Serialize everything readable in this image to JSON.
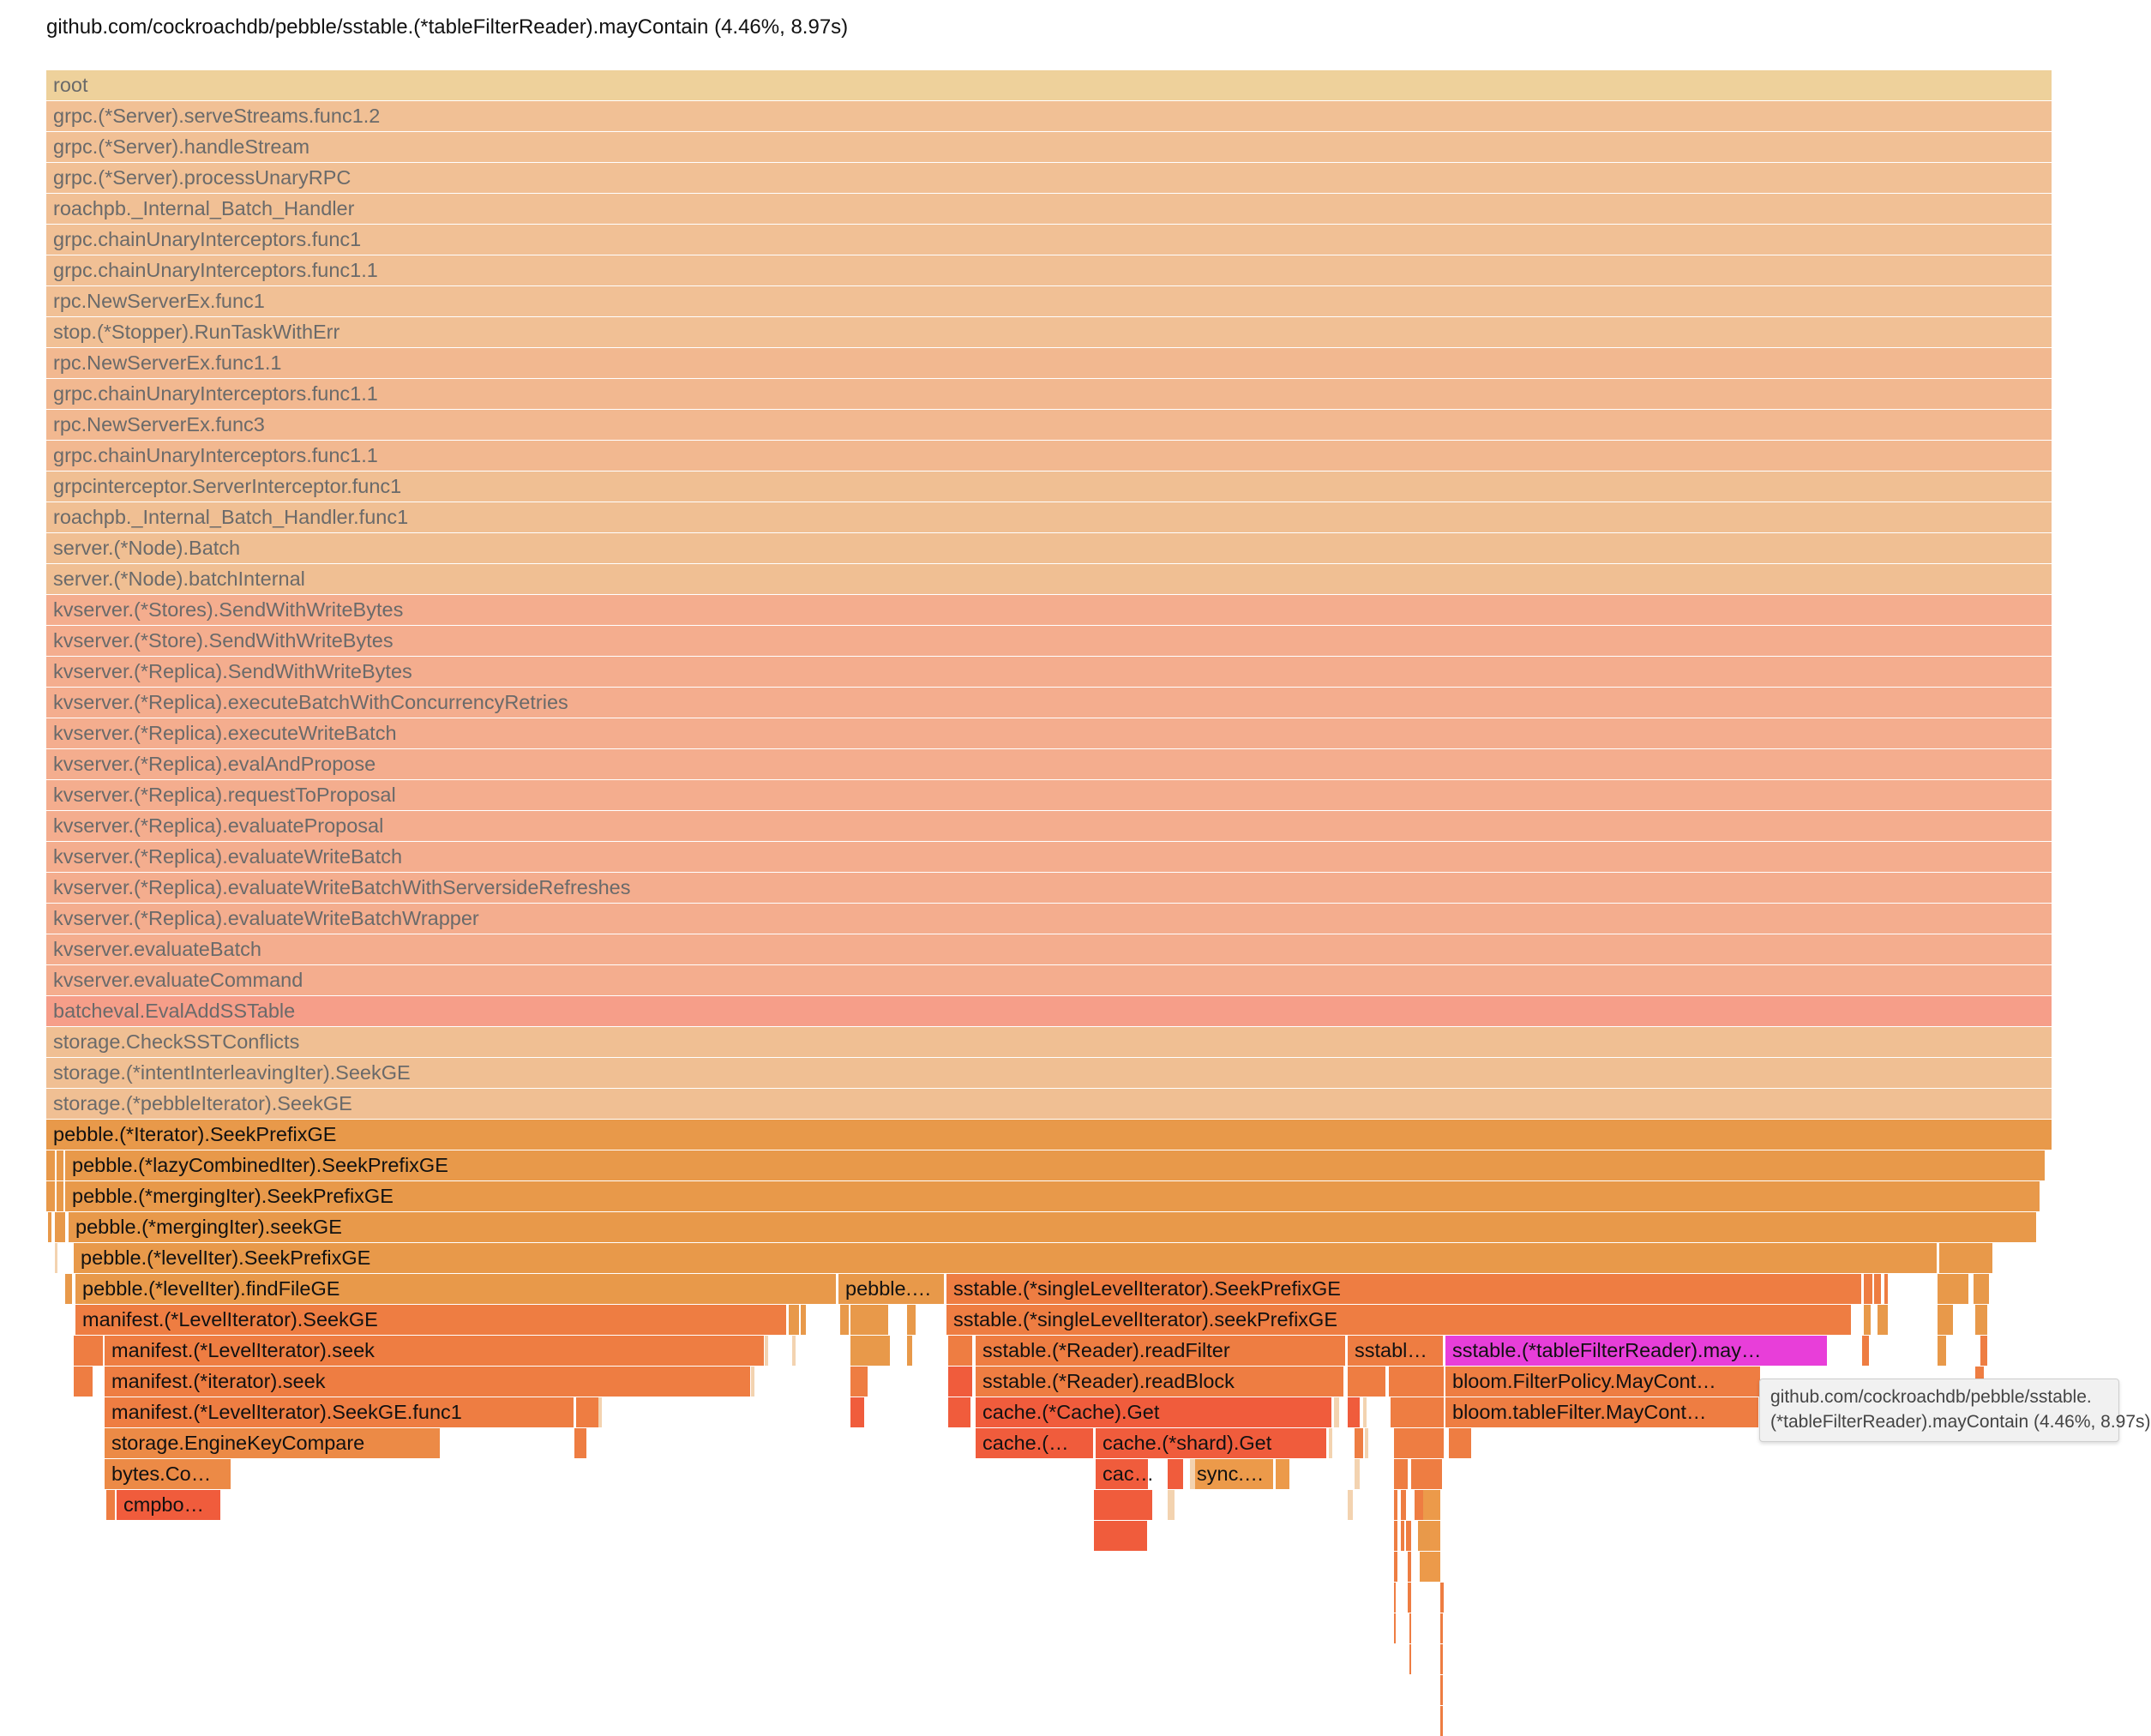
{
  "header": {
    "title": "github.com/cockroachdb/pebble/sstable.(*tableFilterReader).mayContain (4.46%, 8.97s)"
  },
  "tooltip": {
    "line1": "github.com/cockroachdb/pebble/sstable.",
    "line2": "(*tableFilterReader).mayContain (4.46%, 8.97s)"
  },
  "colors": {
    "root": "#eed19b",
    "grpc": "#f1c095",
    "kv": "#f4ad8e",
    "batcheval": "#f69e89",
    "storage": "#f0bf93",
    "pebble": "#e8994a",
    "hot": "#ee7d42",
    "cache": "#f05c3c",
    "highlight": "#e83ed9"
  },
  "frames": [
    {
      "label": "root",
      "color": "#eed19b"
    },
    {
      "label": "grpc.(*Server).serveStreams.func1.2",
      "color": "#f1c095"
    },
    {
      "label": "grpc.(*Server).handleStream",
      "color": "#f1c095"
    },
    {
      "label": "grpc.(*Server).processUnaryRPC",
      "color": "#f1c095"
    },
    {
      "label": "roachpb._Internal_Batch_Handler",
      "color": "#f1c095"
    },
    {
      "label": "grpc.chainUnaryInterceptors.func1",
      "color": "#f1c095"
    },
    {
      "label": "grpc.chainUnaryInterceptors.func1.1",
      "color": "#f1c095"
    },
    {
      "label": "rpc.NewServerEx.func1",
      "color": "#f1c095"
    },
    {
      "label": "stop.(*Stopper).RunTaskWithErr",
      "color": "#f1c095"
    },
    {
      "label": "rpc.NewServerEx.func1.1",
      "color": "#f2b890"
    },
    {
      "label": "grpc.chainUnaryInterceptors.func1.1",
      "color": "#f2b890"
    },
    {
      "label": "rpc.NewServerEx.func3",
      "color": "#f2b890"
    },
    {
      "label": "grpc.chainUnaryInterceptors.func1.1",
      "color": "#f2b890"
    },
    {
      "label": "grpcinterceptor.ServerInterceptor.func1",
      "color": "#f0bf93"
    },
    {
      "label": "roachpb._Internal_Batch_Handler.func1",
      "color": "#f0bf93"
    },
    {
      "label": "server.(*Node).Batch",
      "color": "#f0bf93"
    },
    {
      "label": "server.(*Node).batchInternal",
      "color": "#f0bf93"
    },
    {
      "label": "kvserver.(*Stores).SendWithWriteBytes",
      "color": "#f4ad8e"
    },
    {
      "label": "kvserver.(*Store).SendWithWriteBytes",
      "color": "#f4ad8e"
    },
    {
      "label": "kvserver.(*Replica).SendWithWriteBytes",
      "color": "#f4ad8e"
    },
    {
      "label": "kvserver.(*Replica).executeBatchWithConcurrencyRetries",
      "color": "#f4ad8e"
    },
    {
      "label": "kvserver.(*Replica).executeWriteBatch",
      "color": "#f4ad8e"
    },
    {
      "label": "kvserver.(*Replica).evalAndPropose",
      "color": "#f4ad8e"
    },
    {
      "label": "kvserver.(*Replica).requestToProposal",
      "color": "#f4ad8e"
    },
    {
      "label": "kvserver.(*Replica).evaluateProposal",
      "color": "#f4ad8e"
    },
    {
      "label": "kvserver.(*Replica).evaluateWriteBatch",
      "color": "#f4ad8e"
    },
    {
      "label": "kvserver.(*Replica).evaluateWriteBatchWithServersideRefreshes",
      "color": "#f4ad8e"
    },
    {
      "label": "kvserver.(*Replica).evaluateWriteBatchWrapper",
      "color": "#f4ad8e"
    },
    {
      "label": "kvserver.evaluateBatch",
      "color": "#f4ad8e"
    },
    {
      "label": "kvserver.evaluateCommand",
      "color": "#f4ad8e"
    },
    {
      "label": "batcheval.EvalAddSSTable",
      "color": "#f69e89"
    },
    {
      "label": "storage.CheckSSTConflicts",
      "color": "#f0bf93"
    },
    {
      "label": "storage.(*intentInterleavingIter).SeekGE",
      "color": "#f0bf93"
    },
    {
      "label": "storage.(*pebbleIterator).SeekGE",
      "color": "#f0bf93"
    },
    {
      "label": "pebble.(*Iterator).SeekPrefixGE",
      "color": "#e8994a"
    },
    {
      "label": "pebble.(*lazyCombinedIter).SeekPrefixGE",
      "color": "#e8994a"
    },
    {
      "label": "pebble.(*mergingIter).SeekPrefixGE",
      "color": "#e8994a"
    },
    {
      "label": "pebble.(*mergingIter).seekGE",
      "color": "#e8994a"
    },
    {
      "label": "pebble.(*levelIter).SeekPrefixGE",
      "color": "#e8994a"
    },
    {
      "label": "pebble.(*levelIter).findFileGE",
      "color": "#e8994a"
    },
    {
      "label": "pebble.…",
      "color": "#e8994a"
    },
    {
      "label": "sstable.(*singleLevelIterator).SeekPrefixGE",
      "color": "#ee7d42"
    },
    {
      "label": "manifest.(*LevelIterator).SeekGE",
      "color": "#ee7d42"
    },
    {
      "label": "sstable.(*singleLevelIterator).seekPrefixGE",
      "color": "#ee7d42"
    },
    {
      "label": "manifest.(*LevelIterator).seek",
      "color": "#ee7d42"
    },
    {
      "label": "sstable.(*Reader).readFilter",
      "color": "#ee7d42"
    },
    {
      "label": "sstabl…",
      "color": "#ee7d42"
    },
    {
      "label": "sstable.(*tableFilterReader).may…",
      "color": "#e83ed9"
    },
    {
      "label": "manifest.(*iterator).seek",
      "color": "#ee7d42"
    },
    {
      "label": "sstable.(*Reader).readBlock",
      "color": "#ee7d42"
    },
    {
      "label": "bloom.FilterPolicy.MayCont…",
      "color": "#ee7d42"
    },
    {
      "label": "manifest.(*LevelIterator).SeekGE.func1",
      "color": "#ee7d42"
    },
    {
      "label": "cache.(*Cache).Get",
      "color": "#f05c3c"
    },
    {
      "label": "bloom.tableFilter.MayCont…",
      "color": "#ee7d42"
    },
    {
      "label": "storage.EngineKeyCompare",
      "color": "#ec8a46"
    },
    {
      "label": "cache.(…",
      "color": "#f05c3c"
    },
    {
      "label": "cache.(*shard).Get",
      "color": "#f05c3c"
    },
    {
      "label": "bytes.Co…",
      "color": "#ec8a46"
    },
    {
      "label": "cac…",
      "color": "#f05c3c"
    },
    {
      "label": "sync.…",
      "color": "#ec9a4a"
    },
    {
      "label": "cmpbo…",
      "color": "#f05c3c"
    }
  ]
}
